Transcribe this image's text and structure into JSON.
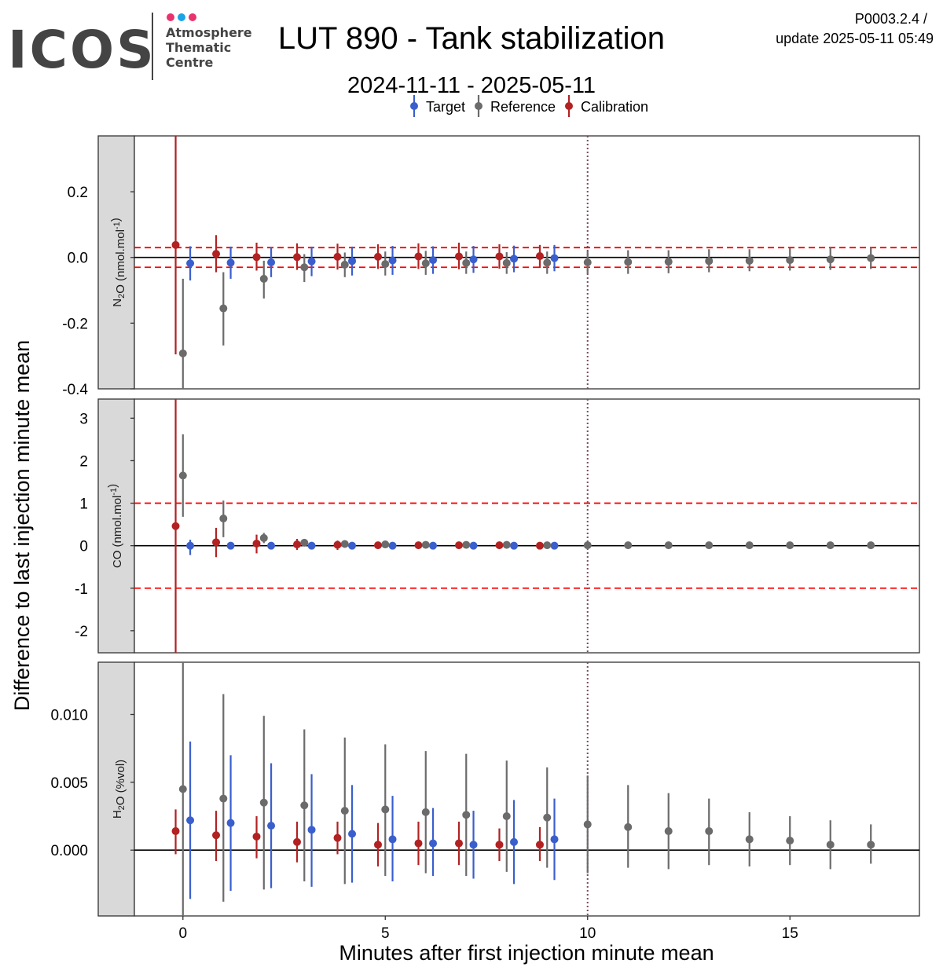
{
  "header": {
    "logo_wordmark": "ICOS",
    "logo_line1": "Atmosphere",
    "logo_line2": "Thematic",
    "logo_line3": "Centre",
    "title": "LUT 890 - Tank stabilization",
    "subtitle": "2024-11-11 - 2025-05-11",
    "product_code": "P0003.2.4 /",
    "update_text": "update  2025-05-11 05:49"
  },
  "colors": {
    "target": "#3a5fcd",
    "reference": "#6b6b6b",
    "calibration": "#b22222",
    "threshold": "#ff0000",
    "vline": "#7a4b5c",
    "logo_dot1": "#e8336d",
    "logo_dot2": "#1ba3e8",
    "logo_dot3": "#e8336d",
    "strip_bg": "#d9d9d9"
  },
  "chart_data": {
    "type": "scatter",
    "xlabel": "Minutes after first injection minute mean",
    "ylabel": "Difference to last injection minute mean",
    "xlim": [
      -1.2,
      18.2
    ],
    "xticks": [
      0,
      5,
      10,
      15
    ],
    "vline_x": 10,
    "legend": {
      "position": "top",
      "entries": [
        "Target",
        "Reference",
        "Calibration"
      ]
    },
    "panels": [
      {
        "strip_base": "N",
        "strip_sub": "2",
        "strip_mid": "O (nmol.mol",
        "strip_sup": "-1",
        "strip_end": ")",
        "ylim": [
          -0.4,
          0.37
        ],
        "yticks": [
          "0.2",
          "0.0",
          "-0.2",
          "-0.4"
        ],
        "ytick_values": [
          0.2,
          0.0,
          -0.2,
          -0.4
        ],
        "threshold": [
          0.03,
          -0.03
        ],
        "series": [
          {
            "name": "Target",
            "x": [
              0.18,
              1.18,
              2.18,
              3.18,
              4.18,
              5.18,
              6.18,
              7.18,
              8.18,
              9.18
            ],
            "y": [
              -0.018,
              -0.016,
              -0.015,
              -0.012,
              -0.011,
              -0.009,
              -0.008,
              -0.006,
              -0.004,
              -0.002
            ],
            "lo": [
              -0.07,
              -0.065,
              -0.06,
              -0.057,
              -0.055,
              -0.053,
              -0.05,
              -0.047,
              -0.045,
              -0.042
            ],
            "hi": [
              0.034,
              0.033,
              0.032,
              0.033,
              0.033,
              0.035,
              0.034,
              0.035,
              0.036,
              0.038
            ]
          },
          {
            "name": "Reference",
            "x": [
              0,
              1,
              2,
              3,
              4,
              5,
              6,
              7,
              8,
              9,
              10,
              11,
              12,
              13,
              14,
              15,
              16,
              17
            ],
            "y": [
              -0.292,
              -0.155,
              -0.065,
              -0.03,
              -0.022,
              -0.02,
              -0.018,
              -0.017,
              -0.017,
              -0.016,
              -0.015,
              -0.014,
              -0.013,
              -0.011,
              -0.01,
              -0.008,
              -0.006,
              -0.002
            ],
            "lo": [
              -0.4,
              -0.268,
              -0.125,
              -0.075,
              -0.06,
              -0.055,
              -0.053,
              -0.05,
              -0.05,
              -0.05,
              -0.05,
              -0.05,
              -0.048,
              -0.045,
              -0.042,
              -0.04,
              -0.038,
              -0.035
            ],
            "hi": [
              -0.065,
              -0.045,
              -0.01,
              0.01,
              0.015,
              0.018,
              0.02,
              0.018,
              0.016,
              0.018,
              0.02,
              0.022,
              0.022,
              0.025,
              0.025,
              0.028,
              0.03,
              0.03
            ]
          },
          {
            "name": "Calibration",
            "x": [
              -0.18,
              0.82,
              1.82,
              2.82,
              3.82,
              4.82,
              5.82,
              6.82,
              7.82,
              8.82
            ],
            "y": [
              0.038,
              0.011,
              0.001,
              0.001,
              0.002,
              0.002,
              0.003,
              0.003,
              0.003,
              0.004
            ],
            "lo": [
              -0.295,
              -0.045,
              -0.04,
              -0.038,
              -0.037,
              -0.035,
              -0.035,
              -0.036,
              -0.034,
              -0.032
            ],
            "hi": [
              0.37,
              0.068,
              0.045,
              0.043,
              0.042,
              0.04,
              0.043,
              0.045,
              0.04,
              0.038
            ]
          }
        ]
      },
      {
        "strip_base": "CO (nmol.mol",
        "strip_sub": "",
        "strip_mid": "",
        "strip_sup": "-1",
        "strip_end": ")",
        "ylim": [
          -2.52,
          3.45
        ],
        "yticks": [
          "3",
          "2",
          "1",
          "0",
          "-1",
          "-2"
        ],
        "ytick_values": [
          3,
          2,
          1,
          0,
          -1,
          -2
        ],
        "threshold": [
          1,
          -1
        ],
        "series": [
          {
            "name": "Target",
            "x": [
              0.18,
              1.18,
              2.18,
              3.18,
              4.18,
              5.18,
              6.18,
              7.18,
              8.18,
              9.18
            ],
            "y": [
              0.0,
              0.0,
              0.0,
              0.0,
              0.0,
              0.0,
              0.0,
              0.0,
              0.0,
              0.0
            ],
            "lo": [
              -0.22,
              -0.06,
              -0.05,
              -0.05,
              -0.05,
              -0.04,
              -0.04,
              -0.04,
              -0.04,
              -0.04
            ],
            "hi": [
              0.14,
              0.05,
              0.04,
              0.04,
              0.04,
              0.04,
              0.04,
              0.04,
              0.04,
              0.04
            ]
          },
          {
            "name": "Reference",
            "x": [
              0,
              1,
              2,
              3,
              4,
              5,
              6,
              7,
              8,
              9,
              10,
              11,
              12,
              13,
              14,
              15,
              16,
              17
            ],
            "y": [
              1.65,
              0.64,
              0.18,
              0.07,
              0.04,
              0.03,
              0.02,
              0.02,
              0.02,
              0.01,
              0.01,
              0.01,
              0.01,
              0.01,
              0.01,
              0.01,
              0.01,
              0.01
            ],
            "lo": [
              0.68,
              0.2,
              0.06,
              0.0,
              -0.02,
              -0.02,
              -0.02,
              -0.02,
              -0.02,
              -0.02,
              -0.02,
              -0.02,
              -0.02,
              -0.02,
              -0.02,
              -0.02,
              -0.02,
              -0.02
            ],
            "hi": [
              2.62,
              1.06,
              0.3,
              0.14,
              0.1,
              0.08,
              0.06,
              0.06,
              0.06,
              0.05,
              0.05,
              0.05,
              0.05,
              0.05,
              0.05,
              0.05,
              0.05,
              0.05
            ],
            "labels": []
          },
          {
            "name": "Calibration",
            "x": [
              -0.18,
              0.82,
              1.82,
              2.82,
              3.82,
              4.82,
              5.82,
              6.82,
              7.82,
              8.82
            ],
            "y": [
              0.46,
              0.08,
              0.05,
              0.03,
              0.02,
              0.01,
              0.01,
              0.01,
              0.01,
              0.0
            ],
            "lo": [
              -2.52,
              -0.27,
              -0.18,
              -0.1,
              -0.1,
              -0.06,
              -0.06,
              -0.06,
              -0.05,
              -0.05
            ],
            "hi": [
              3.45,
              0.42,
              0.26,
              0.16,
              0.12,
              0.08,
              0.08,
              0.08,
              0.07,
              0.06
            ]
          }
        ]
      },
      {
        "strip_base": "H",
        "strip_sub": "2",
        "strip_mid": "O (%vol)",
        "strip_sup": "",
        "strip_end": "",
        "ylim": [
          -0.00485,
          0.01385
        ],
        "yticks": [
          "0.010",
          "0.005",
          "0.000"
        ],
        "ytick_values": [
          0.01,
          0.005,
          0.0
        ],
        "threshold": [],
        "series": [
          {
            "name": "Target",
            "x": [
              0.18,
              1.18,
              2.18,
              3.18,
              4.18,
              5.18,
              6.18,
              7.18,
              8.18,
              9.18
            ],
            "y": [
              0.0022,
              0.002,
              0.0018,
              0.0015,
              0.0012,
              0.0008,
              0.0005,
              0.0004,
              0.0006,
              0.0008
            ],
            "lo": [
              -0.0036,
              -0.003,
              -0.0028,
              -0.0027,
              -0.0024,
              -0.0023,
              -0.0019,
              -0.0021,
              -0.0025,
              -0.0022
            ],
            "hi": [
              0.008,
              0.007,
              0.0064,
              0.0056,
              0.0048,
              0.004,
              0.0031,
              0.0029,
              0.0037,
              0.0038
            ]
          },
          {
            "name": "Reference",
            "x": [
              0,
              1,
              2,
              3,
              4,
              5,
              6,
              7,
              8,
              9,
              10,
              11,
              12,
              13,
              14,
              15,
              16,
              17
            ],
            "y": [
              0.0045,
              0.0038,
              0.0035,
              0.0033,
              0.0029,
              0.003,
              0.0028,
              0.0026,
              0.0025,
              0.0024,
              0.0019,
              0.0017,
              0.0014,
              0.0014,
              0.0008,
              0.0007,
              0.0004,
              0.0004
            ],
            "lo": [
              -0.0049,
              -0.0038,
              -0.0029,
              -0.0023,
              -0.0025,
              -0.0019,
              -0.0017,
              -0.0019,
              -0.0016,
              -0.0013,
              -0.0017,
              -0.0013,
              -0.0014,
              -0.0011,
              -0.0012,
              -0.0011,
              -0.0014,
              -0.001
            ],
            "hi": [
              0.0139,
              0.0115,
              0.0099,
              0.0089,
              0.0083,
              0.0078,
              0.0073,
              0.0071,
              0.0066,
              0.0061,
              0.0055,
              0.0048,
              0.0042,
              0.0038,
              0.0028,
              0.0025,
              0.0022,
              0.0019
            ]
          },
          {
            "name": "Calibration",
            "x": [
              -0.18,
              0.82,
              1.82,
              2.82,
              3.82,
              4.82,
              5.82,
              6.82,
              7.82,
              8.82
            ],
            "y": [
              0.0014,
              0.0011,
              0.001,
              0.0006,
              0.0009,
              0.0004,
              0.0005,
              0.0005,
              0.0004,
              0.0004
            ],
            "lo": [
              -0.0003,
              -0.0008,
              -0.0006,
              -0.0009,
              -0.0003,
              -0.0012,
              -0.0011,
              -0.0011,
              -0.0008,
              -0.0008
            ],
            "hi": [
              0.003,
              0.0029,
              0.0025,
              0.0021,
              0.0021,
              0.002,
              0.0021,
              0.0021,
              0.0016,
              0.0017
            ]
          }
        ]
      }
    ]
  }
}
